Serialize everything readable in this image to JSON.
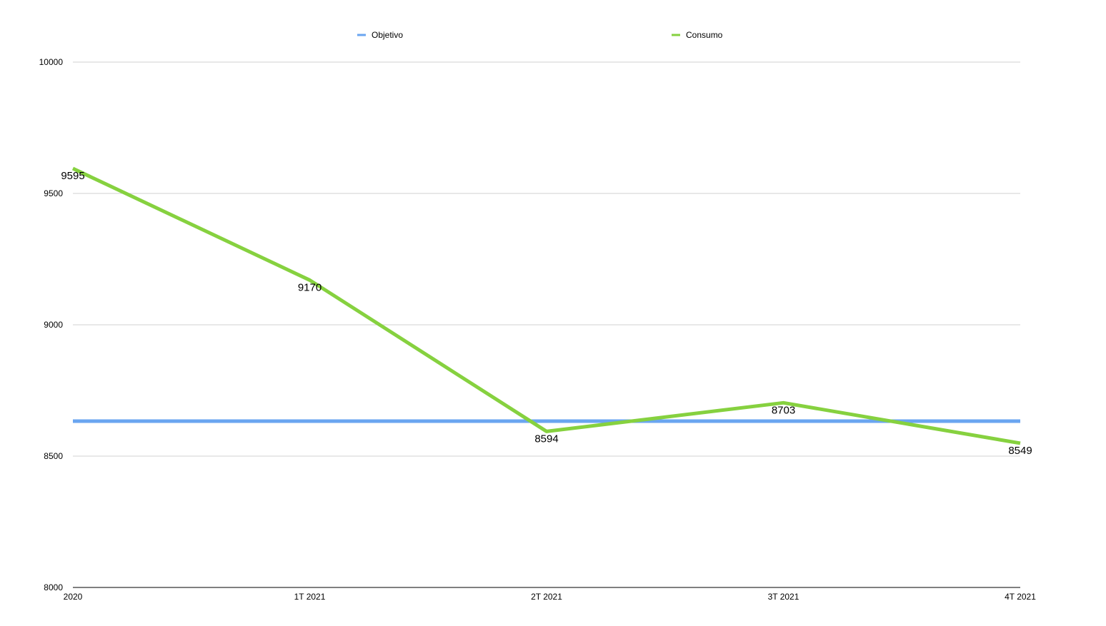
{
  "chart_data": {
    "type": "line",
    "categories": [
      "2020",
      "1T 2021",
      "2T 2021",
      "3T 2021",
      "4T 2021"
    ],
    "series": [
      {
        "name": "Objetivo",
        "color": "#6aa5f0",
        "values": [
          8633,
          8633,
          8633,
          8633,
          8633
        ],
        "data_labels": false
      },
      {
        "name": "Consumo",
        "color": "#86d13f",
        "values": [
          9595,
          9170,
          8594,
          8703,
          8549
        ],
        "data_labels": true
      }
    ],
    "ylim": [
      8000,
      10000
    ],
    "yticks": [
      8000,
      8500,
      9000,
      9500,
      10000
    ],
    "grid": true,
    "legend": "top"
  }
}
